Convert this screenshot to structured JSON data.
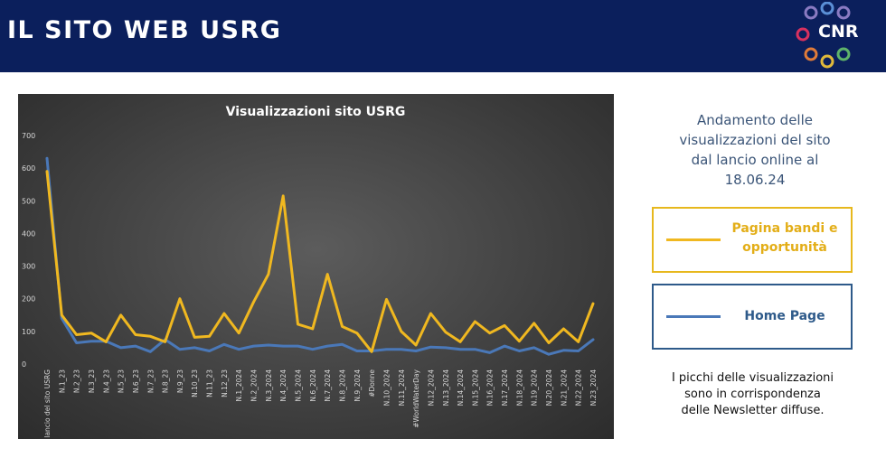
{
  "header": {
    "title": "IL SITO WEB USRG",
    "logo_text": "CNR",
    "color": "#0b1f5c"
  },
  "side_text": [
    "Andamento delle",
    "visualizzazioni del sito",
    "dal lancio online al",
    "18.06.24"
  ],
  "legend": {
    "gold_label": [
      "Pagina bandi e",
      "opportunità"
    ],
    "blue_label": "Home Page"
  },
  "note": [
    "I picchi delle visualizzazioni",
    "sono in corrispondenza",
    "delle Newsletter diffuse."
  ],
  "chart_data": {
    "type": "line",
    "title": "Visualizzazioni  sito  USRG",
    "ylim": [
      0,
      700
    ],
    "yticks": [
      0,
      100,
      200,
      300,
      400,
      500,
      600,
      700
    ],
    "grid": false,
    "categories": [
      "lancio del sito USRG",
      "N.1_23",
      "N.2_23",
      "N.3_23",
      "N.4_23",
      "N.5_23",
      "N.6_23",
      "N.7_23",
      "N.8_23",
      "N.9_23",
      "N.10_23",
      "N.11_23",
      "N.12_23",
      "N.1_2024",
      "N.2_2024",
      "N.3_2024",
      "N.4_2024",
      "N.5_2024",
      "N.6_2024",
      "N.7_2024",
      "N.8_2024",
      "N.9_2024",
      "#Donne",
      "N.10_2024",
      "N.11_2024",
      "#WorldWaterDay",
      "N.12_2024",
      "N.13_2024",
      "N.14_2024",
      "N.15_2024",
      "N.16_2024",
      "N.17_2024",
      "N.18_2024",
      "N.19_2024",
      "N.20_2024",
      "N.21_2024",
      "N.22_2024",
      "N.23_2024"
    ],
    "series": [
      {
        "name": "Pagina bandi e opportunità",
        "color": "#f0b820",
        "values": [
          590,
          150,
          90,
          95,
          68,
          150,
          90,
          85,
          68,
          200,
          82,
          85,
          155,
          95,
          190,
          275,
          515,
          122,
          108,
          275,
          115,
          95,
          38,
          198,
          100,
          58,
          155,
          98,
          68,
          130,
          95,
          118,
          70,
          125,
          65,
          108,
          68,
          185
        ]
      },
      {
        "name": "Home Page",
        "color": "#4a78b8",
        "values": [
          630,
          140,
          65,
          70,
          70,
          50,
          55,
          38,
          75,
          45,
          50,
          40,
          60,
          45,
          55,
          58,
          55,
          55,
          45,
          55,
          60,
          40,
          40,
          45,
          45,
          40,
          52,
          50,
          45,
          45,
          35,
          55,
          40,
          50,
          30,
          42,
          40,
          75
        ]
      }
    ]
  }
}
